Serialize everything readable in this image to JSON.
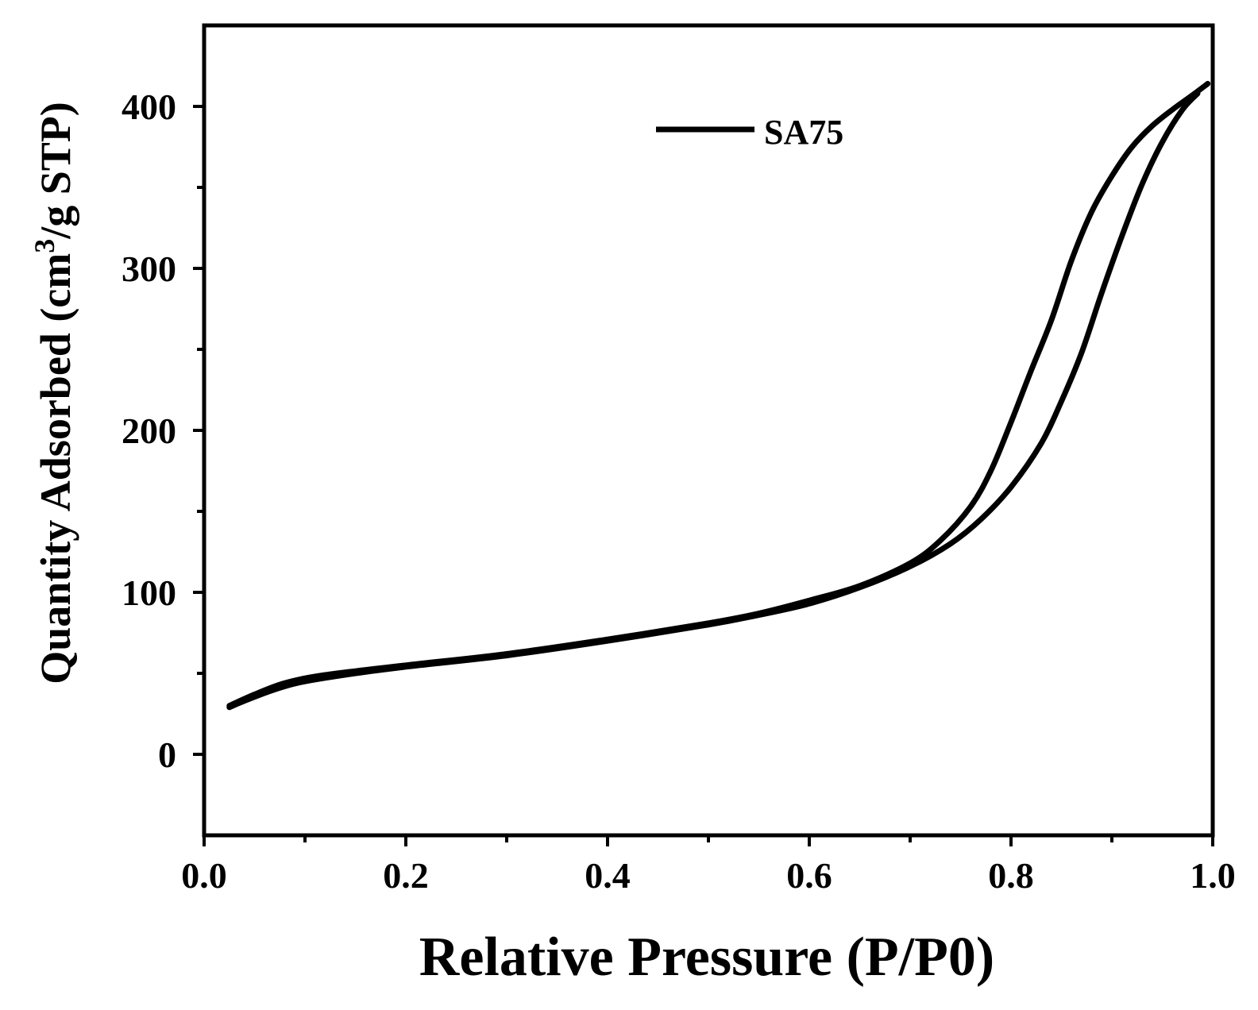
{
  "chart_data": {
    "type": "line",
    "xlabel": "Relative Pressure (P/P0)",
    "ylabel_parts": [
      "Quantity Adsorbed (cm",
      "3",
      "/g STP)"
    ],
    "xlim": [
      0.0,
      1.0
    ],
    "ylim": [
      -50,
      450
    ],
    "x_ticks": [
      0.0,
      0.2,
      0.4,
      0.6,
      0.8,
      1.0
    ],
    "x_tick_labels": [
      "0.0",
      "0.2",
      "0.4",
      "0.6",
      "0.8",
      "1.0"
    ],
    "x_minor_ticks": [
      0.1,
      0.3,
      0.5,
      0.7,
      0.9
    ],
    "y_ticks": [
      0,
      100,
      200,
      300,
      400
    ],
    "y_tick_labels": [
      "0",
      "100",
      "200",
      "300",
      "400"
    ],
    "y_minor_ticks": [
      50,
      150,
      250,
      350
    ],
    "legend": {
      "position": "top-center",
      "entries": [
        "SA75"
      ]
    },
    "color": "#000000",
    "series": [
      {
        "name": "SA75",
        "adsorption": [
          [
            0.025,
            29
          ],
          [
            0.04,
            33
          ],
          [
            0.07,
            40
          ],
          [
            0.1,
            45
          ],
          [
            0.15,
            50
          ],
          [
            0.2,
            54
          ],
          [
            0.3,
            61
          ],
          [
            0.4,
            70
          ],
          [
            0.5,
            80
          ],
          [
            0.55,
            86
          ],
          [
            0.6,
            93
          ],
          [
            0.65,
            103
          ],
          [
            0.7,
            116
          ],
          [
            0.74,
            130
          ],
          [
            0.77,
            145
          ],
          [
            0.8,
            165
          ],
          [
            0.83,
            192
          ],
          [
            0.85,
            218
          ],
          [
            0.87,
            248
          ],
          [
            0.89,
            285
          ],
          [
            0.91,
            320
          ],
          [
            0.93,
            352
          ],
          [
            0.95,
            378
          ],
          [
            0.97,
            398
          ],
          [
            0.985,
            408
          ]
        ],
        "desorption": [
          [
            0.995,
            414
          ],
          [
            0.98,
            407
          ],
          [
            0.96,
            398
          ],
          [
            0.94,
            388
          ],
          [
            0.92,
            375
          ],
          [
            0.9,
            357
          ],
          [
            0.88,
            335
          ],
          [
            0.86,
            305
          ],
          [
            0.84,
            268
          ],
          [
            0.82,
            237
          ],
          [
            0.8,
            205
          ],
          [
            0.78,
            175
          ],
          [
            0.76,
            153
          ],
          [
            0.73,
            132
          ],
          [
            0.7,
            118
          ],
          [
            0.65,
            104
          ],
          [
            0.6,
            95
          ],
          [
            0.55,
            87
          ],
          [
            0.5,
            81
          ],
          [
            0.4,
            71
          ],
          [
            0.3,
            62
          ],
          [
            0.2,
            55
          ],
          [
            0.12,
            49
          ],
          [
            0.08,
            44
          ],
          [
            0.05,
            37
          ],
          [
            0.025,
            30
          ]
        ]
      }
    ]
  }
}
